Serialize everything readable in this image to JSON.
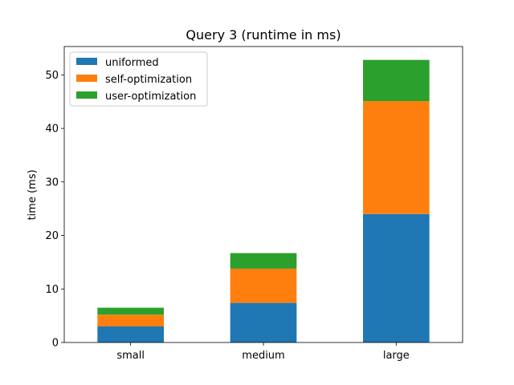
{
  "chart_data": {
    "type": "bar",
    "stacked": true,
    "title": "Query 3 (runtime in ms)",
    "xlabel": "",
    "ylabel": "time (ms)",
    "categories": [
      "small",
      "medium",
      "large"
    ],
    "series": [
      {
        "name": "uniformed",
        "color": "#1f77b4",
        "values": [
          3.0,
          7.4,
          24.0
        ]
      },
      {
        "name": "self-optimization",
        "color": "#ff7f0e",
        "values": [
          2.2,
          6.4,
          21.1
        ]
      },
      {
        "name": "user-optimization",
        "color": "#2ca02c",
        "values": [
          1.3,
          2.9,
          7.7
        ]
      }
    ],
    "ylim": [
      0,
      55.3
    ],
    "yticks": [
      0,
      10,
      20,
      30,
      40,
      50
    ],
    "legend_position": "upper-left",
    "grid": false
  }
}
